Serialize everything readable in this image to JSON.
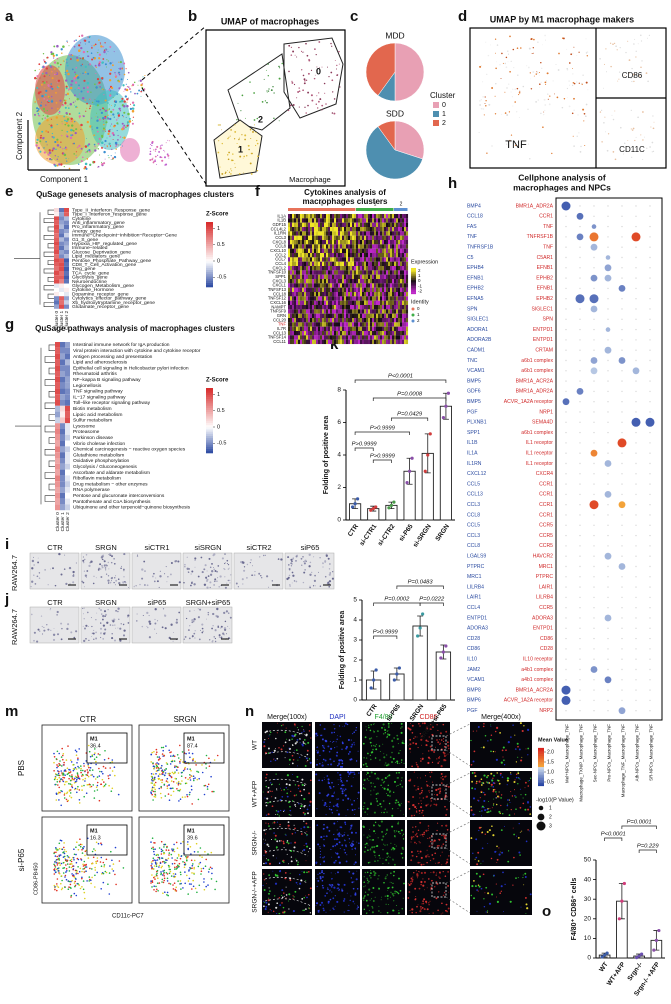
{
  "figure": {
    "letters": [
      "a",
      "b",
      "c",
      "d",
      "e",
      "f",
      "g",
      "h",
      "i",
      "j",
      "k",
      "l",
      "m",
      "n",
      "o"
    ],
    "a": {
      "ylabel": "Component 2",
      "xlabel": "Component 1"
    },
    "b": {
      "title": "UMAP of macrophages",
      "clusters": [
        "0",
        "2",
        "1"
      ],
      "label": "Macrophage"
    },
    "c": {
      "pies": [
        {
          "title": "MDD",
          "values": [
            50,
            10,
            40
          ]
        },
        {
          "title": "SDD",
          "values": [
            30,
            60,
            10
          ]
        }
      ],
      "legend_title": "Cluster",
      "legend": [
        "0",
        "1",
        "2"
      ],
      "colors": [
        "#e8a0b4",
        "#4e8fb0",
        "#e2674e"
      ]
    },
    "d": {
      "title": "UMAP by M1 macrophage makers",
      "markers": [
        "TNF",
        "CD86",
        "CD11C"
      ]
    },
    "e": {
      "title": "QuSage genesets analysis of macrophages clusters",
      "clusters": [
        "Cluster 0",
        "Cluster 1",
        "Cluster 2"
      ],
      "legend_title": "Z-Score",
      "zlim": [
        -0.8,
        1.2
      ],
      "legend_ticks": [
        1,
        0.5,
        0,
        -0.5
      ],
      "rows": [
        "Type_II_Interferon_Response_gene",
        "Type_I_Interferon_response_gene",
        "Cytokine",
        "Anti_inflammatory_gene",
        "Pro_inflammatory_gene",
        "Anergy_gene",
        "Immune−Checkpoint−Inhibition−Receptor−Gene",
        "G1_S_gene",
        "Hypoxia_HIF_regulated_gene",
        "Immune−related",
        "Glucose_Deprivation_gene",
        "Lipid_mediators_gene",
        "Pentose_Phosphate_Pathway_gene",
        "CD8_T_Cell_Activation_gene",
        "Treg_gene",
        "TCA_cycle_gene",
        "Glycolysis_gene",
        "Neuroendocrine",
        "Glycogen_Metabolism_gene",
        "Cytokine_Hormone",
        "Dopamine_receptor_gene",
        "Cytolytics_effector_pathway_gene",
        "X5_hydroxytryptamine_receptor_gene",
        "Glutamate_receptor_gene"
      ],
      "z": [
        [
          0.2,
          -0.6,
          1.0
        ],
        [
          0.1,
          -0.4,
          0.9
        ],
        [
          1.0,
          -0.5,
          -0.3
        ],
        [
          0.9,
          -0.4,
          -0.5
        ],
        [
          1.0,
          -0.3,
          -0.6
        ],
        [
          0.9,
          -0.5,
          -0.4
        ],
        [
          0.8,
          -0.6,
          -0.2
        ],
        [
          0.9,
          -0.3,
          -0.5
        ],
        [
          1.0,
          -0.5,
          -0.4
        ],
        [
          0.9,
          -0.6,
          -0.3
        ],
        [
          1.0,
          -0.4,
          -0.5
        ],
        [
          0.8,
          -0.5,
          -0.3
        ],
        [
          1.0,
          0.9,
          -0.7
        ],
        [
          0.9,
          1.0,
          -0.6
        ],
        [
          0.8,
          1.0,
          -0.7
        ],
        [
          1.0,
          0.8,
          -0.6
        ],
        [
          0.9,
          0.9,
          -0.7
        ],
        [
          1.0,
          0.7,
          -0.6
        ],
        [
          -0.1,
          0.1,
          0.0
        ],
        [
          0.0,
          -0.1,
          0.1
        ],
        [
          0.1,
          0.0,
          -0.1
        ],
        [
          -0.5,
          0.9,
          -0.4
        ],
        [
          -0.6,
          0.8,
          -0.2
        ],
        [
          -0.4,
          1.0,
          -0.5
        ]
      ]
    },
    "f": {
      "title": [
        "Cytokines analysis of",
        "macrophages clusters"
      ],
      "clusters": [
        "0",
        "1",
        "2"
      ],
      "cluster_colors": [
        "#e8735a",
        "#3fae49",
        "#5b8fd0"
      ],
      "genes": [
        "IL1A",
        "IL1B",
        "GDF15",
        "CCL4L2",
        "IL1RN",
        "CCL3",
        "CXCL8",
        "CCL8",
        "CXCL10",
        "CCL2",
        "CCL7",
        "CCL4",
        "CXCL2",
        "TNFSF10",
        "SPP1",
        "CXCL3",
        "CXCL1",
        "TNFSF13",
        "CCL18",
        "TNFSF12",
        "CXCL16",
        "NAMPT",
        "TNFSF9",
        "GRN",
        "CCL20",
        "TNF",
        "IL7R",
        "CCL13",
        "TNFSF14",
        "CCL11"
      ],
      "legend_title": "Expression",
      "legend_ticks": [
        2,
        1,
        0,
        -1,
        -2
      ],
      "zlim": [
        -2.5,
        2.5
      ],
      "identity_title": "Identity"
    },
    "g": {
      "title": "QuSage pathways analysis of macrophages clusters",
      "clusters": [
        "Cluster 0",
        "Cluster 1",
        "Cluster 2"
      ],
      "legend_title": "Z-Score",
      "zlim": [
        -0.8,
        1.2
      ],
      "legend_ticks": [
        1,
        0.5,
        0,
        -0.5
      ],
      "rows": [
        "Intestinal immune network for IgA production",
        "Viral protein interaction with cytokine and cytokine receptor",
        "Antigen processing and presentation",
        "Lipid and atherosclerosis",
        "Epithelial cell signaling in Helicobacter pylori infection",
        "Rheumatoid arthritis",
        "NF−kappa B signaling pathway",
        "Legionellosis",
        "TNF signaling pathway",
        "IL−17 signaling pathway",
        "Toll−like receptor signaling pathway",
        "Biotin metabolism",
        "Lipoic acid metabolism",
        "Sulfur metabolism",
        "Lysosome",
        "Proteasome",
        "Parkinson disease",
        "Vibrio cholerae infection",
        "Chemical carcinogenesis − reactive oxygen species",
        "Glutathione metabolism",
        "Oxidative phosphorylation",
        "Glycolysis / Gluconeogenesis",
        "Ascorbate and aldarate metabolism",
        "Riboflavin metabolism",
        "Drug metabolism − other enzymes",
        "RNA polymerase",
        "Pentose and glucuronate interconversions",
        "Pantothenate and CoA biosynthesis",
        "Ubiquinone and other terpenoid−quinone biosynthesis"
      ],
      "z": [
        [
          1.0,
          -0.6,
          -0.4
        ],
        [
          0.9,
          -0.5,
          -0.5
        ],
        [
          1.0,
          -0.4,
          -0.6
        ],
        [
          0.9,
          -0.6,
          -0.3
        ],
        [
          1.0,
          -0.5,
          -0.5
        ],
        [
          0.9,
          -0.4,
          -0.5
        ],
        [
          1.0,
          -0.6,
          -0.4
        ],
        [
          0.9,
          -0.5,
          -0.4
        ],
        [
          1.0,
          -0.6,
          -0.5
        ],
        [
          0.9,
          -0.4,
          -0.5
        ],
        [
          1.0,
          -0.5,
          -0.6
        ],
        [
          -0.3,
          0.2,
          1.0
        ],
        [
          -0.4,
          0.1,
          0.9
        ],
        [
          -0.2,
          0.3,
          1.0
        ],
        [
          0.6,
          -0.5,
          -0.1
        ],
        [
          0.7,
          -0.6,
          -0.1
        ],
        [
          0.6,
          -0.5,
          -0.2
        ],
        [
          0.5,
          -0.6,
          0.0
        ],
        [
          0.7,
          -0.4,
          -0.2
        ],
        [
          0.6,
          -0.6,
          -0.1
        ],
        [
          0.5,
          -0.5,
          -0.1
        ],
        [
          0.6,
          -0.4,
          -0.2
        ],
        [
          0.5,
          -0.6,
          0.0
        ],
        [
          0.7,
          -0.5,
          -0.1
        ],
        [
          0.6,
          -0.5,
          -0.2
        ],
        [
          0.5,
          -0.4,
          -0.1
        ],
        [
          0.6,
          -0.6,
          0.0
        ],
        [
          0.5,
          -0.5,
          -0.1
        ],
        [
          0.6,
          -0.4,
          -0.2
        ]
      ]
    },
    "h": {
      "title": [
        "Cellphone analysis of",
        "macrophages and NPCs"
      ],
      "ligands": [
        "BMP4",
        "CCL18",
        "FAS",
        "TNF",
        "TNFRSF1B",
        "C5",
        "EPHB4",
        "EFNB1",
        "EPHB2",
        "EFNA5",
        "SPN",
        "SIGLEC1",
        "ADORA1",
        "ADORA2B",
        "CADM1",
        "TNC",
        "VCAM1",
        "BMP5",
        "GDF6",
        "BMP5",
        "PGF",
        "PLXNB1",
        "SPP1",
        "IL1B",
        "IL1A",
        "IL1RN",
        "CXCL12",
        "CCL5",
        "CCL13",
        "CCL3",
        "CCL8",
        "CCL5",
        "CCL3",
        "CCL8",
        "LGALS9",
        "PTPRC",
        "MRC1",
        "LILRB4",
        "LAIR1",
        "CCL4",
        "ENTPD1",
        "ADORA3",
        "CD28",
        "CD86",
        "IL10",
        "JAM2",
        "VCAM1",
        "BMP8",
        "BMP6",
        "PGF"
      ],
      "receptors": [
        "BMR1A_ADR2A",
        "CCR1",
        "TNF",
        "TNFRSF1B",
        "TNF",
        "C5AR1",
        "EFNB1",
        "EPHB2",
        "EFNB1",
        "EPHB2",
        "SIGLEC1",
        "SPN",
        "ENTPD1",
        "ENTPD1",
        "CRTAM",
        "a6b1 complex",
        "a6b1 complex",
        "BMR1A_ACR2A",
        "BMR1A_ADR2A",
        "ACVR_1A2A receptor",
        "NRP1",
        "SEMA4D",
        "a6b1 complex",
        "IL1 receptor",
        "IL1 receptor",
        "IL1 receptor",
        "CXCR4",
        "CCR1",
        "CCR1",
        "CCR1",
        "CCR1",
        "CCR5",
        "CCR5",
        "CCR5",
        "HAVCR2",
        "MRC1",
        "PTPRC",
        "LAIR1",
        "LILRB4",
        "CCR5",
        "ADORA3",
        "ENTPD1",
        "CD86",
        "CD28",
        "IL10 receptor",
        "a4b1 complex",
        "a4b1 complex",
        "BMR1A_ACR2A",
        "ACVR_1A2A receptor",
        "NRP2"
      ],
      "columns": [
        "Mel+NPCs_Macrophage_TNF",
        "Macrophage_TXNIP_Macrophage_TNF",
        "Sec-NPCs_Macrophage_TNF",
        "Pro-NPCs_Macrophage_TNF",
        "Macrophage_TNF_Macrophage_TNF",
        "Ath-NPCs_Macrophage_TNF",
        "SR-NPCs_Macrophage_TNF"
      ],
      "dots": [
        [
          0,
          0,
          0.5,
          3
        ],
        [
          1,
          1,
          0.6,
          2
        ],
        [
          2,
          2,
          0.8,
          1
        ],
        [
          3,
          1,
          0.7,
          2
        ],
        [
          3,
          2,
          1.6,
          3
        ],
        [
          3,
          5,
          1.9,
          3
        ],
        [
          4,
          2,
          1.0,
          2
        ],
        [
          5,
          3,
          1.0,
          1
        ],
        [
          6,
          3,
          0.9,
          2
        ],
        [
          7,
          2,
          0.8,
          2
        ],
        [
          7,
          3,
          1.0,
          2
        ],
        [
          8,
          4,
          0.7,
          2
        ],
        [
          9,
          1,
          0.6,
          3
        ],
        [
          9,
          2,
          0.6,
          3
        ],
        [
          10,
          2,
          1.0,
          2
        ],
        [
          12,
          3,
          1.0,
          1
        ],
        [
          14,
          3,
          1.0,
          2
        ],
        [
          15,
          2,
          0.9,
          2
        ],
        [
          15,
          4,
          0.8,
          2
        ],
        [
          16,
          2,
          1.1,
          2
        ],
        [
          16,
          5,
          1.0,
          2
        ],
        [
          18,
          1,
          0.7,
          2
        ],
        [
          19,
          0,
          0.6,
          2
        ],
        [
          21,
          5,
          0.5,
          3
        ],
        [
          21,
          6,
          0.5,
          3
        ],
        [
          23,
          4,
          1.9,
          3
        ],
        [
          24,
          2,
          1.5,
          2
        ],
        [
          25,
          3,
          1.0,
          2
        ],
        [
          28,
          3,
          1.0,
          2
        ],
        [
          29,
          2,
          1.9,
          3
        ],
        [
          29,
          4,
          1.3,
          2
        ],
        [
          34,
          3,
          1.0,
          2
        ],
        [
          35,
          4,
          1.0,
          2
        ],
        [
          40,
          3,
          1.0,
          2
        ],
        [
          45,
          2,
          0.8,
          2
        ],
        [
          46,
          3,
          0.7,
          2
        ],
        [
          47,
          0,
          0.5,
          3
        ],
        [
          48,
          0,
          0.5,
          3
        ],
        [
          49,
          4,
          0.9,
          2
        ]
      ],
      "mean_title": "Mean Value",
      "mean_lim": [
        0.3,
        2.2
      ],
      "mean_ticks": [
        {
          "value": 2,
          "label": "2.0"
        },
        {
          "value": 1.5,
          "label": "1.5"
        },
        {
          "value": 1,
          "label": "1.0"
        },
        {
          "value": 0.5,
          "label": "0.5"
        }
      ],
      "p_title": "-log10(P Value)",
      "p_sizes": [
        1,
        2,
        3
      ]
    },
    "i": {
      "cell_line": "RAW264.7",
      "conditions": [
        "CTR",
        "SRGN",
        "siCTR1",
        "siSRGN",
        "siCTR2",
        "siP65"
      ]
    },
    "j": {
      "cell_line": "RAW264.7",
      "conditions": [
        "CTR",
        "SRGN",
        "siP65",
        "SRGN+siP65"
      ]
    },
    "m": {
      "columns": [
        "CTR",
        "SRGN"
      ],
      "rows": [
        "PBS",
        "si-P65"
      ],
      "ylabel": "CD86-PB450",
      "xlabel": "CD11c-PC7",
      "gates": [
        {
          "label": "M1",
          "value": 36.4
        },
        {
          "label": "M1",
          "value": 87.4
        },
        {
          "label": "M1",
          "value": 16.3
        },
        {
          "label": "M1",
          "value": 39.6
        }
      ]
    },
    "n": {
      "columns": [
        "Merge(100x)",
        "DAPI",
        "F4/80",
        "CD86",
        "Merge(400x)"
      ],
      "rows": [
        "WT",
        "WT+AFP",
        "SRGN-/-",
        "SRGN-/-+AFP"
      ]
    }
  },
  "chart_data": [
    {
      "type": "bar",
      "categories": [
        "CTR",
        "si-CTR1",
        "si-CTR2",
        "si-P65",
        "si-SRGN",
        "SRGN"
      ],
      "values": [
        1.0,
        0.7,
        0.9,
        3.0,
        4.1,
        7.0
      ],
      "errors": [
        0.3,
        0.15,
        0.2,
        0.8,
        1.2,
        0.8
      ],
      "points": [
        [
          0.8,
          1.0,
          1.3
        ],
        [
          0.6,
          0.7,
          0.8
        ],
        [
          0.75,
          0.9,
          1.1
        ],
        [
          2.3,
          3.0,
          3.8
        ],
        [
          3.0,
          4.0,
          5.3
        ],
        [
          6.3,
          7.0,
          7.8
        ]
      ],
      "point_colors": [
        "#3a5ba8",
        "#d13c3c",
        "#4a9a4a",
        "#8a4fa8",
        "#d13c3c",
        "#8a4fa8"
      ],
      "ylim": [
        0,
        8
      ],
      "yticks": [
        0,
        2,
        4,
        6,
        8
      ],
      "ylabel": "Folding of positive area",
      "annotations": [
        "P<0.0001",
        "P=0.0008",
        "P=0.0429",
        "P>0.9999",
        "P>0.9999",
        "P>0.9999"
      ]
    },
    {
      "type": "bar",
      "categories": [
        "CTR",
        "si-P65",
        "SRGN",
        "SRGN+si-P65"
      ],
      "values": [
        1.0,
        1.3,
        3.7,
        2.4
      ],
      "errors": [
        0.45,
        0.3,
        0.5,
        0.35
      ],
      "points": [
        [
          0.6,
          1.0,
          1.5
        ],
        [
          1.0,
          1.3,
          1.6
        ],
        [
          3.2,
          3.6,
          4.3
        ],
        [
          2.1,
          2.4,
          2.7
        ]
      ],
      "point_colors": [
        "#3a5ba8",
        "#3a5ba8",
        "#3a9aa0",
        "#8a4fa8"
      ],
      "ylim": [
        0,
        5
      ],
      "yticks": [
        0,
        1,
        2,
        3,
        4,
        5
      ],
      "ylabel": "Folding of positive area",
      "annotations": [
        "P=0.0483",
        "P=0.0002",
        "P=0.0222",
        "P>0.9999"
      ]
    },
    {
      "type": "bar",
      "categories": [
        "WT",
        "WT+AFP",
        "Srgn-/-",
        "Srgn-/- +AFP"
      ],
      "values": [
        1.5,
        29,
        1,
        9
      ],
      "errors": [
        1,
        9,
        1,
        5
      ],
      "points": [
        [
          0.5,
          1.5,
          2.5
        ],
        [
          20,
          29,
          38
        ],
        [
          0.2,
          1,
          2
        ],
        [
          4,
          9,
          14
        ]
      ],
      "point_colors": [
        "#3a5ba8",
        "#d13c7a",
        "#6a4fb0",
        "#8a4fa8"
      ],
      "ylim": [
        0,
        50
      ],
      "yticks": [
        0,
        10,
        20,
        30,
        40,
        50
      ],
      "ylabel": "F4/80⁺ CD86⁺ cells",
      "annotations": [
        "P<0.0001",
        "P=0.0001",
        "P=0.229"
      ]
    }
  ]
}
